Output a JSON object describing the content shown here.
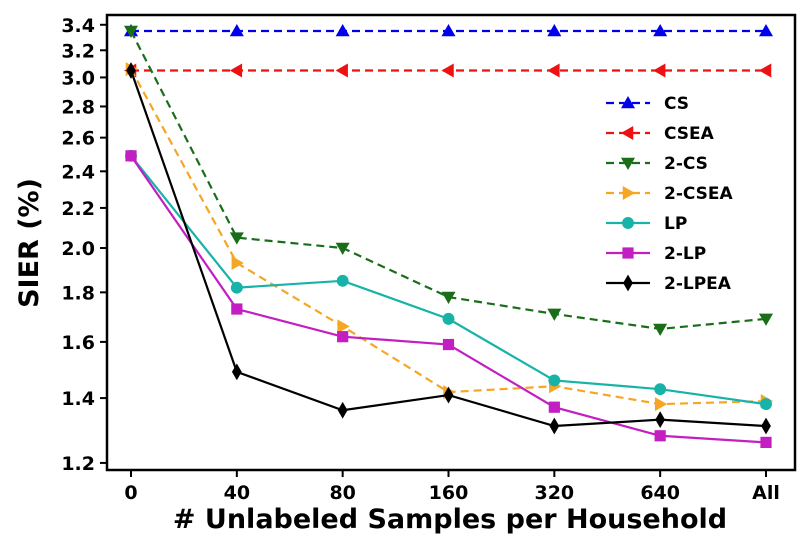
{
  "chart_data": {
    "type": "line",
    "xlabel": "# Unlabeled Samples per Household",
    "ylabel": "SIER (%)",
    "categories": [
      "0",
      "40",
      "80",
      "160",
      "320",
      "640",
      "All"
    ],
    "y_scale": "log",
    "ylim": [
      1.18,
      3.48
    ],
    "y_ticks": [
      1.2,
      1.4,
      1.6,
      1.8,
      2.0,
      2.2,
      2.4,
      2.6,
      2.8,
      3.0,
      3.2,
      3.4
    ],
    "y_tick_labels": [
      "1.2",
      "1.4",
      "1.6",
      "1.8",
      "2.0",
      "2.2",
      "2.4",
      "2.6",
      "2.8",
      "3.0",
      "3.2",
      "3.4"
    ],
    "legend_position": "right",
    "grid": false,
    "series": [
      {
        "name": "CS",
        "color": "#0000ee",
        "marker": "triangle-up",
        "dashed": true,
        "values": [
          3.35,
          3.35,
          3.35,
          3.35,
          3.35,
          3.35,
          3.35
        ]
      },
      {
        "name": "CSEA",
        "color": "#ee1111",
        "marker": "triangle-left",
        "dashed": true,
        "values": [
          3.05,
          3.05,
          3.05,
          3.05,
          3.05,
          3.05,
          3.05
        ]
      },
      {
        "name": "2-CS",
        "color": "#1a6e1a",
        "marker": "triangle-down",
        "dashed": true,
        "values": [
          3.35,
          2.05,
          2.0,
          1.78,
          1.71,
          1.65,
          1.69
        ]
      },
      {
        "name": "2-CSEA",
        "color": "#f5a623",
        "marker": "triangle-right",
        "dashed": true,
        "values": [
          3.06,
          1.93,
          1.66,
          1.42,
          1.44,
          1.38,
          1.39
        ]
      },
      {
        "name": "LP",
        "color": "#17b3a8",
        "marker": "circle",
        "dashed": false,
        "values": [
          2.49,
          1.82,
          1.85,
          1.69,
          1.46,
          1.43,
          1.38
        ]
      },
      {
        "name": "2-LP",
        "color": "#c21ec2",
        "marker": "square",
        "dashed": false,
        "values": [
          2.49,
          1.73,
          1.62,
          1.59,
          1.37,
          1.28,
          1.26
        ]
      },
      {
        "name": "2-LPEA",
        "color": "#000000",
        "marker": "diamond",
        "dashed": false,
        "values": [
          3.05,
          1.49,
          1.36,
          1.41,
          1.31,
          1.33,
          1.31
        ]
      }
    ]
  }
}
